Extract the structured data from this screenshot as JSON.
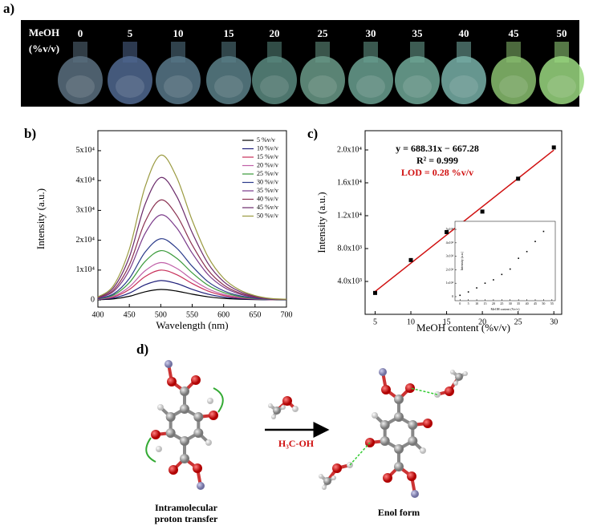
{
  "panel_a": {
    "label": "a)",
    "header": [
      "MeOH",
      "(%v/v)"
    ],
    "columns": [
      0,
      5,
      10,
      15,
      20,
      25,
      30,
      35,
      40,
      45,
      50
    ]
  },
  "chart_data": [
    {
      "type": "line",
      "label": "b)",
      "x_label": "Wavelength (nm)",
      "y_label": "Intensity (a.u.)",
      "x": [
        400,
        425,
        450,
        475,
        500,
        525,
        550,
        575,
        600,
        625,
        650,
        675,
        700
      ],
      "xlim": [
        400,
        700
      ],
      "xticks": [
        400,
        450,
        500,
        550,
        600,
        650,
        700
      ],
      "ylim": [
        -2400,
        56700
      ],
      "yticks": [
        0,
        {
          "value": 10000,
          "label": "1x10⁴"
        },
        {
          "value": 20000,
          "label": "2x10⁴"
        },
        {
          "value": 30000,
          "label": "3x10⁴"
        },
        {
          "value": 40000,
          "label": "4x10⁴"
        },
        {
          "value": 50000,
          "label": "5x10⁴"
        }
      ],
      "legend": "upper right",
      "series": [
        {
          "name": "5 %v/v",
          "color": "#000000",
          "values": [
            70,
            350,
            1225,
            2730,
            3500,
            2975,
            1925,
            1050,
            525,
            245,
            105,
            35,
            18
          ]
        },
        {
          "name": "10 %v/v",
          "color": "#1f1f7a",
          "values": [
            130,
            650,
            2275,
            5070,
            6500,
            5525,
            3575,
            1950,
            975,
            455,
            195,
            65,
            33
          ]
        },
        {
          "name": "15 %v/v",
          "color": "#c8305a",
          "values": [
            200,
            1000,
            3500,
            7800,
            10000,
            8500,
            5500,
            3000,
            1500,
            700,
            300,
            100,
            50
          ]
        },
        {
          "name": "20 %v/v",
          "color": "#c060a8",
          "values": [
            250,
            1250,
            4375,
            9750,
            12500,
            10625,
            6875,
            3750,
            1875,
            875,
            375,
            125,
            63
          ]
        },
        {
          "name": "25 %v/v",
          "color": "#3a9a3a",
          "values": [
            330,
            1650,
            5775,
            12870,
            16500,
            14025,
            9075,
            4950,
            2475,
            1155,
            495,
            165,
            83
          ]
        },
        {
          "name": "30 %v/v",
          "color": "#2a3a8a",
          "values": [
            410,
            2050,
            7175,
            15990,
            20500,
            17425,
            11275,
            6150,
            3075,
            1435,
            615,
            205,
            103
          ]
        },
        {
          "name": "35 %v/v",
          "color": "#7a3a8a",
          "values": [
            570,
            2850,
            9975,
            22230,
            28500,
            24225,
            15675,
            8550,
            4275,
            1995,
            855,
            285,
            143
          ]
        },
        {
          "name": "40 %v/v",
          "color": "#8a3050",
          "values": [
            670,
            3350,
            11725,
            26130,
            33500,
            28475,
            18425,
            10050,
            5025,
            2345,
            1005,
            335,
            168
          ]
        },
        {
          "name": "45 %v/v",
          "color": "#6a2a6a",
          "values": [
            820,
            4100,
            14350,
            31980,
            41000,
            34850,
            22550,
            12300,
            6150,
            2870,
            1230,
            410,
            205
          ]
        },
        {
          "name": "50 %v/v",
          "color": "#9a9a40",
          "values": [
            970,
            4850,
            16975,
            37830,
            48500,
            41225,
            26675,
            14550,
            7275,
            3395,
            1455,
            485,
            243
          ]
        }
      ]
    },
    {
      "type": "scatter",
      "label": "c)",
      "x_label": "MeOH content (%v/v)",
      "y_label": "Intensity (a.u.)",
      "x": [
        5,
        10,
        15,
        20,
        25,
        30
      ],
      "values": [
        2600,
        6600,
        10000,
        12500,
        16500,
        20300
      ],
      "color": "#000000",
      "fit": {
        "x": [
          5,
          30
        ],
        "values": [
          2774,
          19982
        ],
        "color": "#d01010"
      },
      "xlim": [
        3.6,
        31.1
      ],
      "xticks": [
        5,
        10,
        15,
        20,
        25,
        30
      ],
      "ylim": [
        0,
        22340
      ],
      "yticks": [
        {
          "value": 4000,
          "label": "4.0x10³"
        },
        {
          "value": 8000,
          "label": "8.0x10³"
        },
        {
          "value": 12000,
          "label": "1.2x10⁴"
        },
        {
          "value": 16000,
          "label": "1.6x10⁴"
        },
        {
          "value": 20000,
          "label": "2.0x10⁴"
        }
      ],
      "annotations": [
        {
          "text": "y = 688.31x − 667.28",
          "color": "#000000"
        },
        {
          "text": "R² = 0.999",
          "color": "#000000"
        },
        {
          "text": "LOD = 0.28 %v/v",
          "color": "#d01010"
        }
      ]
    },
    {
      "type": "scatter",
      "x_label": "MeOH content (%v/v)",
      "y_label": "Intensity (a.u.)",
      "x": [
        0,
        5,
        10,
        15,
        20,
        25,
        30,
        35,
        40,
        45,
        50
      ],
      "values": [
        1000,
        3500,
        6500,
        10000,
        12500,
        16500,
        20500,
        28500,
        33500,
        41000,
        48500
      ],
      "color": "#000000",
      "xlim": [
        -3,
        57
      ],
      "xticks": [
        0,
        5,
        10,
        15,
        20,
        25,
        30,
        35,
        40,
        45,
        50,
        55
      ],
      "ylim": [
        -3000,
        56000
      ],
      "yticks": [
        0,
        {
          "value": 10000,
          "label": "1x10⁴"
        },
        {
          "value": 20000,
          "label": "2x10⁴"
        },
        {
          "value": 30000,
          "label": "3x10⁴"
        },
        {
          "value": 40000,
          "label": "4x10⁴"
        },
        {
          "value": 50000,
          "label": "5x10⁴"
        }
      ]
    }
  ],
  "panel_d": {
    "label": "d)",
    "reagent": "H₃C-OH",
    "left_caption": [
      "Intramolecular",
      "proton transfer"
    ],
    "right_caption": "Enol form"
  }
}
